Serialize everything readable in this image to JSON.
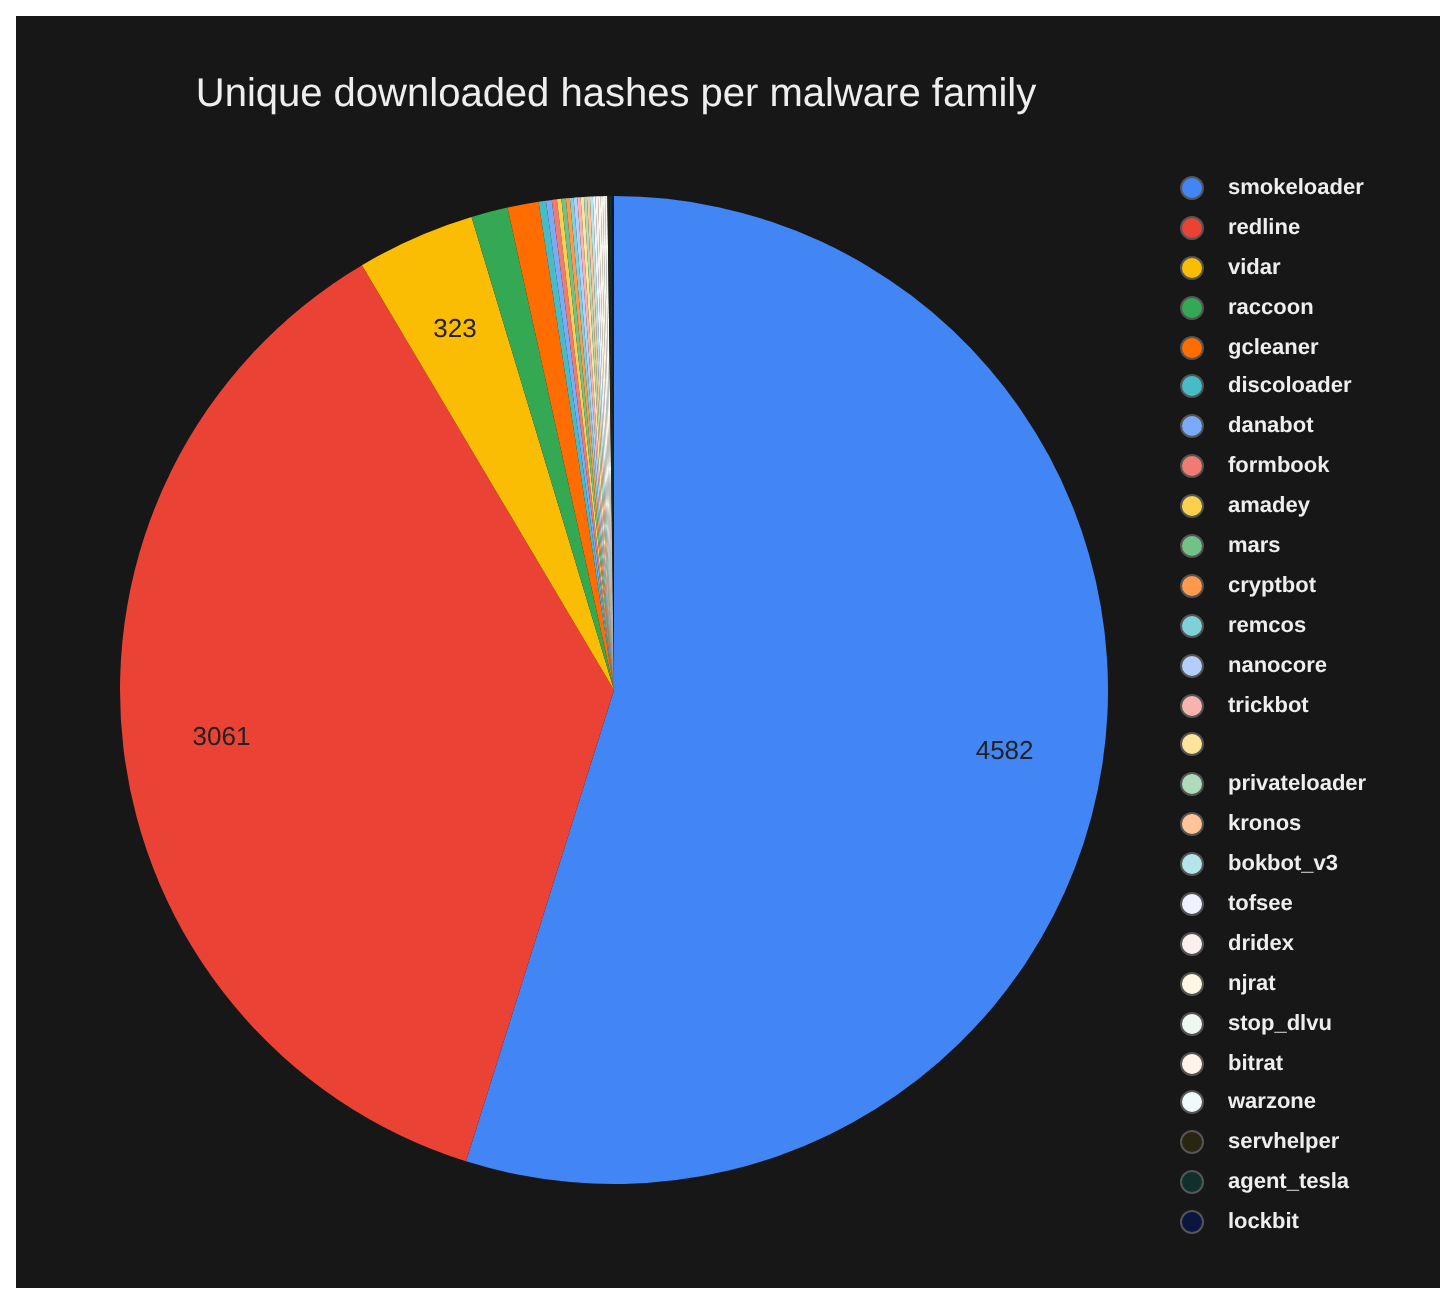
{
  "chart_data": {
    "type": "pie",
    "title": "Unique downloaded hashes per malware family",
    "legend": "right",
    "categories": [
      "smokeloader",
      "redline",
      "vidar",
      "raccoon",
      "gcleaner",
      "discoloader",
      "danabot",
      "formbook",
      "amadey",
      "mars",
      "cryptbot",
      "remcos",
      "nanocore",
      "trickbot",
      null,
      "privateloader",
      "kronos",
      "bokbot_v3",
      "tofsee",
      "dridex",
      "njrat",
      "stop_dlvu",
      "bitrat",
      "warzone",
      "servhelper",
      "agent_tesla",
      "lockbit"
    ],
    "values": [
      4582,
      3061,
      323,
      100,
      85,
      20,
      16,
      14,
      12,
      12,
      11,
      10,
      10,
      9,
      9,
      8,
      8,
      8,
      7,
      7,
      7,
      6,
      6,
      6,
      6,
      6,
      6
    ],
    "value_labels": [
      "4582",
      "3061",
      "323",
      null,
      null,
      null,
      null,
      null,
      null,
      null,
      null,
      null,
      null,
      null,
      null,
      null,
      null,
      null,
      null,
      null,
      null,
      null,
      null,
      null,
      null,
      null,
      null
    ],
    "colors": [
      "#4285f4",
      "#ea4335",
      "#fbbc04",
      "#34a853",
      "#ff6d01",
      "#46bdc6",
      "#7baaf7",
      "#f07b72",
      "#fcd04f",
      "#71c287",
      "#ff994d",
      "#7ed1d7",
      "#b3cefb",
      "#f7b4ae",
      "#fde49b",
      "#aedcba",
      "#ffc599",
      "#b5e5e8",
      "#ecf3fe",
      "#fdeeee",
      "#fef7e1",
      "#eef7f1",
      "#fff3ea",
      "#f0fafb",
      "#2a2410",
      "#10302c",
      "#0c1440"
    ]
  }
}
